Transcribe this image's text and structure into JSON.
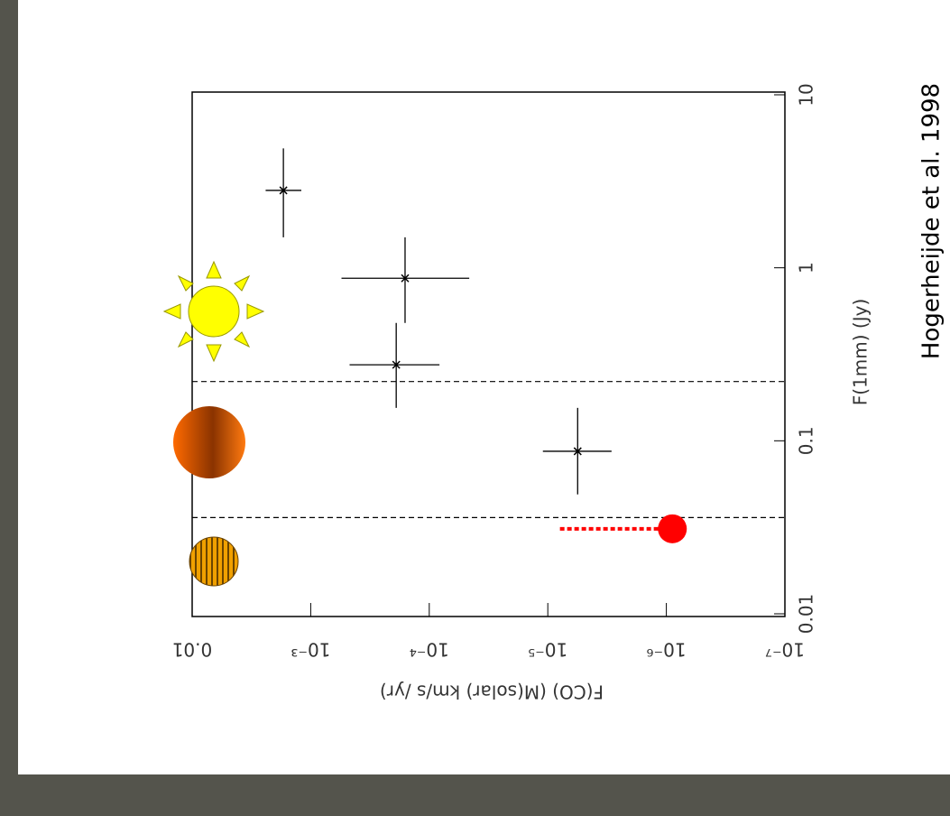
{
  "chart_data": {
    "type": "scatter",
    "x_label": "F(1mm) (Jy)",
    "y_label": "F(CO) (M(solar) km/s /yr)",
    "log": true,
    "xlim": [
      0.01,
      10
    ],
    "xticks": [
      0.01,
      0.1,
      1,
      10
    ],
    "ylim": [
      1e-07,
      0.01
    ],
    "yticks": [
      0.01,
      {
        "value": 0.001,
        "label": "10⁻³"
      },
      {
        "value": 0.0001,
        "label": "10⁻⁴"
      },
      {
        "value": 1e-05,
        "label": "10⁻⁵"
      },
      {
        "value": 1e-06,
        "label": "10⁻⁶"
      },
      {
        "value": 1e-07,
        "label": "10⁻⁷"
      }
    ],
    "series": [
      {
        "color": "#000000",
        "x": [
          2.8,
          0.87,
          0.275,
          0.087
        ],
        "y": [
          0.0017,
          0.00016,
          0.00019,
          5.6e-06
        ],
        "x_low": [
          1.5,
          0.48,
          0.155,
          0.049
        ],
        "x_high": [
          4.9,
          1.5,
          0.48,
          0.155
        ],
        "y_low": [
          0.0012,
          4.6e-05,
          8.2e-05,
          2.9e-06
        ],
        "y_high": [
          0.0024,
          0.00055,
          0.00047,
          1.1e-05
        ]
      }
    ],
    "limit": {
      "color": "#ff0000",
      "x": 0.031,
      "y": 8.9e-07,
      "y_from": 7.9e-06
    },
    "vlines": [
      0.22,
      0.036
    ],
    "source": "Hogerheijde et al. 1998"
  }
}
